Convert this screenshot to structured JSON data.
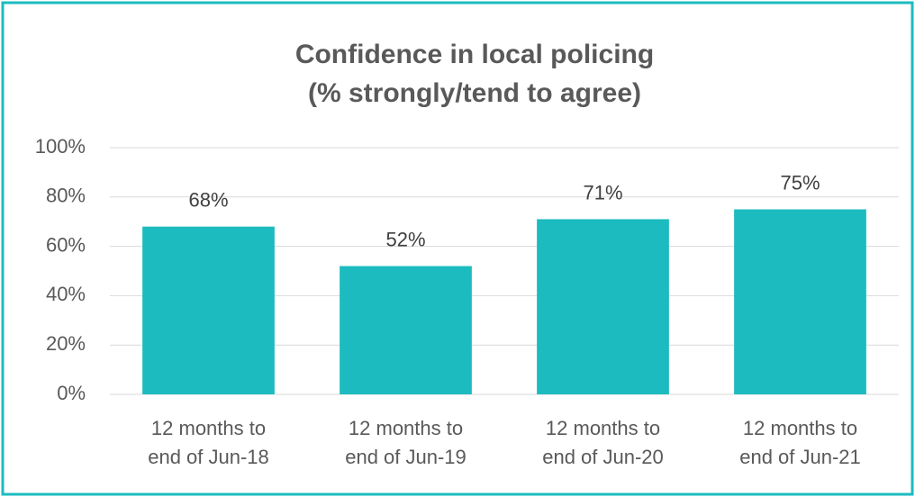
{
  "chart_data": {
    "type": "bar",
    "title": "Confidence in local policing",
    "subtitle": "(% strongly/tend to agree)",
    "categories": [
      "12 months to end of Jun-18",
      "12 months to end of Jun-19",
      "12 months to end of Jun-20",
      "12 months to end of Jun-21"
    ],
    "values": [
      68,
      52,
      71,
      75
    ],
    "value_labels": [
      "68%",
      "52%",
      "71%",
      "75%"
    ],
    "color": "#1cbbbf",
    "ylim": [
      0,
      100
    ],
    "yticks": [
      {
        "value": 0,
        "label": "0%"
      },
      {
        "value": 20,
        "label": "20%"
      },
      {
        "value": 40,
        "label": "40%"
      },
      {
        "value": 60,
        "label": "60%"
      },
      {
        "value": 80,
        "label": "80%"
      },
      {
        "value": 100,
        "label": "100%"
      }
    ],
    "grid": true
  }
}
